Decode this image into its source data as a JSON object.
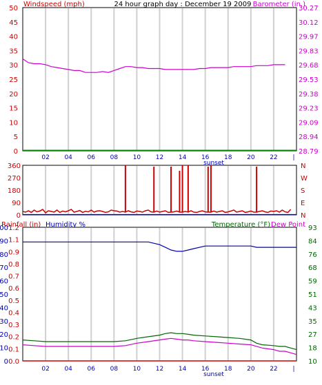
{
  "title": "24 hour graph day : December 19 2009",
  "colors": {
    "wind": "#cc0000",
    "baro": "#cc00cc",
    "dir": "#cc0000",
    "humidity": "#0000aa",
    "temp": "#006600",
    "dew": "#cc00cc",
    "rain": "#cc0000",
    "grid": "#d0d0d0",
    "frame": "#000000"
  },
  "x_ticks": [
    "02",
    "04",
    "06",
    "08",
    "10",
    "12",
    "14",
    "16",
    "18",
    "20",
    "22",
    "|"
  ],
  "sunset_label": "sunset",
  "chart_data": [
    {
      "type": "line",
      "title": "24 hour graph day : December 19 2009",
      "left_label": "Windspeed (mph)",
      "right_label": "Barometer (in.)",
      "left_ticks": [
        "50",
        "45",
        "40",
        "35",
        "30",
        "25",
        "20",
        "15",
        "10",
        "5",
        "0"
      ],
      "right_ticks": [
        "30.27",
        "30.12",
        "29.97",
        "29.83",
        "29.68",
        "29.53",
        "29.38",
        "29.23",
        "29.09",
        "28.94",
        "28.79"
      ],
      "ylim_left": [
        0,
        50
      ],
      "ylim_right": [
        28.79,
        30.27
      ],
      "xlim_hours": [
        0,
        24
      ],
      "series": [
        {
          "name": "Barometer (in.)",
          "axis": "right",
          "x": [
            0,
            0.5,
            1,
            1.5,
            2,
            2.5,
            3,
            3.5,
            4,
            4.5,
            5,
            5.5,
            6,
            6.5,
            7,
            7.5,
            8,
            8.5,
            9,
            9.5,
            10,
            10.5,
            11,
            11.5,
            12,
            12.5,
            13,
            13.5,
            14,
            14.5,
            15,
            15.5,
            16,
            16.5,
            17,
            17.5,
            18,
            18.5,
            19,
            19.5,
            20,
            20.5,
            21,
            21.5,
            22,
            22.5,
            23
          ],
          "values": [
            29.74,
            29.7,
            29.69,
            29.69,
            29.68,
            29.66,
            29.65,
            29.64,
            29.63,
            29.62,
            29.62,
            29.6,
            29.6,
            29.6,
            29.61,
            29.6,
            29.62,
            29.64,
            29.66,
            29.66,
            29.65,
            29.65,
            29.64,
            29.64,
            29.64,
            29.63,
            29.63,
            29.63,
            29.63,
            29.63,
            29.63,
            29.64,
            29.64,
            29.65,
            29.65,
            29.65,
            29.65,
            29.66,
            29.66,
            29.66,
            29.66,
            29.67,
            29.67,
            29.67,
            29.68,
            29.68,
            29.68
          ]
        },
        {
          "name": "Windspeed (mph)",
          "axis": "left",
          "x": [
            0,
            24
          ],
          "values": [
            0.2,
            0.2
          ]
        }
      ]
    },
    {
      "type": "bar",
      "left_ticks": [
        "360",
        "270",
        "180",
        "90",
        "0"
      ],
      "right_ticks": [
        "N",
        "W",
        "S",
        "E",
        "N"
      ],
      "ylim": [
        0,
        360
      ],
      "xlim_hours": [
        0,
        24
      ],
      "direction_hours": [
        0,
        0.25,
        0.5,
        0.75,
        1,
        1.25,
        1.5,
        1.75,
        2,
        2.25,
        2.5,
        2.75,
        3,
        3.25,
        3.5,
        3.75,
        4,
        4.25,
        4.5,
        4.75,
        5,
        5.25,
        5.5,
        5.75,
        6,
        6.25,
        6.5,
        6.75,
        7,
        7.25,
        7.5,
        7.75,
        8,
        8.25,
        8.5,
        8.75,
        9,
        9.25,
        9.5,
        9.75,
        10,
        10.25,
        10.5,
        10.75,
        11,
        11.25,
        11.5,
        11.75,
        12,
        12.25,
        12.5,
        12.75,
        13,
        13.25,
        13.5,
        13.75,
        14,
        14.25,
        14.5,
        14.75,
        15,
        15.25,
        15.5,
        15.75,
        16,
        16.25,
        16.5,
        16.75,
        17,
        17.25,
        17.5,
        17.75,
        18,
        18.25,
        18.5,
        18.75,
        19,
        19.25,
        19.5,
        19.75,
        20,
        20.25,
        20.5,
        20.75,
        21,
        21.25,
        21.5,
        21.75,
        22,
        22.25,
        22.5,
        22.75,
        23,
        23.25,
        23.5
      ],
      "direction_values": [
        25,
        20,
        30,
        18,
        35,
        22,
        28,
        40,
        15,
        30,
        25,
        20,
        35,
        18,
        28,
        22,
        30,
        40,
        20,
        25,
        32,
        18,
        26,
        22,
        35,
        20,
        28,
        30,
        25,
        18,
        22,
        35,
        30,
        28,
        20,
        25,
        360,
        30,
        22,
        18,
        28,
        25,
        20,
        30,
        35,
        22,
        350,
        28,
        20,
        25,
        30,
        18,
        350,
        22,
        28,
        320,
        360,
        25,
        360,
        30,
        20,
        18,
        25,
        30,
        22,
        350,
        360,
        28,
        20,
        25,
        30,
        18,
        22,
        28,
        35,
        20,
        25,
        30,
        18,
        22,
        28,
        20,
        350,
        25,
        30,
        22,
        18,
        28,
        25,
        30,
        20,
        35,
        22,
        18,
        40,
        25,
        20
      ],
      "secondary_line": {
        "x": [
          0,
          24
        ],
        "values": [
          2,
          2
        ]
      }
    },
    {
      "type": "line",
      "left_labels": [
        "Rainfall (in)",
        "Humidity %"
      ],
      "right_labels": [
        "Temperature (°F)",
        "Dew Point"
      ],
      "humidity_ticks": [
        "100",
        "90",
        "80",
        "70",
        "60",
        "50",
        "40",
        "30",
        "20",
        "10",
        "0"
      ],
      "rain_ticks": [
        "1.2",
        "1.1",
        "0.9",
        "0.8",
        "0.7",
        "0.6",
        "0.5",
        "0.4",
        "0.3",
        "0.2",
        "0.1",
        "0.0"
      ],
      "temp_ticks": [
        "93",
        "84",
        "76",
        "68",
        "59",
        "51",
        "43",
        "35",
        "27",
        "18",
        "10"
      ],
      "ylim_humidity": [
        0,
        100
      ],
      "ylim_temp": [
        10,
        93
      ],
      "xlim_hours": [
        0,
        24
      ],
      "series": [
        {
          "name": "Humidity %",
          "axis": "left",
          "x": [
            0,
            1,
            2,
            3,
            4,
            5,
            6,
            7,
            8,
            9,
            10,
            11,
            12,
            12.5,
            13,
            13.5,
            14,
            14.5,
            15,
            16,
            17,
            18,
            19,
            20,
            20.5,
            21,
            22,
            23,
            24
          ],
          "values": [
            89,
            89,
            89,
            89,
            89,
            89,
            89,
            89,
            89,
            89,
            89,
            89,
            87,
            85,
            83,
            82,
            82,
            83,
            84,
            86,
            86,
            86,
            86,
            86,
            85,
            85,
            85,
            85,
            85
          ]
        },
        {
          "name": "Temperature (°F)",
          "axis": "right",
          "x": [
            0,
            1,
            2,
            3,
            4,
            5,
            6,
            7,
            8,
            9,
            10,
            11,
            12,
            12.5,
            13,
            13.5,
            14,
            14.5,
            15,
            16,
            17,
            18,
            19,
            20,
            20.5,
            21,
            22,
            22.5,
            23,
            23.5,
            24
          ],
          "values": [
            23,
            22.5,
            22,
            22,
            22,
            22,
            22,
            22,
            22,
            22.5,
            24,
            25,
            26,
            27,
            27.5,
            27,
            27,
            26.5,
            26,
            25.5,
            25,
            24.5,
            24,
            23,
            21,
            20,
            19.5,
            19,
            19,
            18,
            17
          ]
        },
        {
          "name": "Dew Point",
          "axis": "right",
          "x": [
            0,
            1,
            2,
            3,
            4,
            5,
            6,
            7,
            8,
            9,
            10,
            11,
            12,
            12.5,
            13,
            13.5,
            14,
            14.5,
            15,
            16,
            17,
            18,
            19,
            20,
            21,
            22,
            22.5,
            23,
            23.5,
            24
          ],
          "values": [
            20,
            19.5,
            19,
            19,
            19,
            19,
            19,
            19,
            19,
            19.5,
            21,
            22,
            23,
            23.5,
            24,
            23.5,
            23,
            23,
            22.5,
            22,
            21.5,
            21,
            20.5,
            20,
            18,
            17,
            16,
            16,
            15,
            14
          ]
        },
        {
          "name": "Rainfall (in)",
          "axis": "left",
          "x": [
            0,
            24
          ],
          "values": [
            0,
            0
          ]
        }
      ]
    }
  ]
}
